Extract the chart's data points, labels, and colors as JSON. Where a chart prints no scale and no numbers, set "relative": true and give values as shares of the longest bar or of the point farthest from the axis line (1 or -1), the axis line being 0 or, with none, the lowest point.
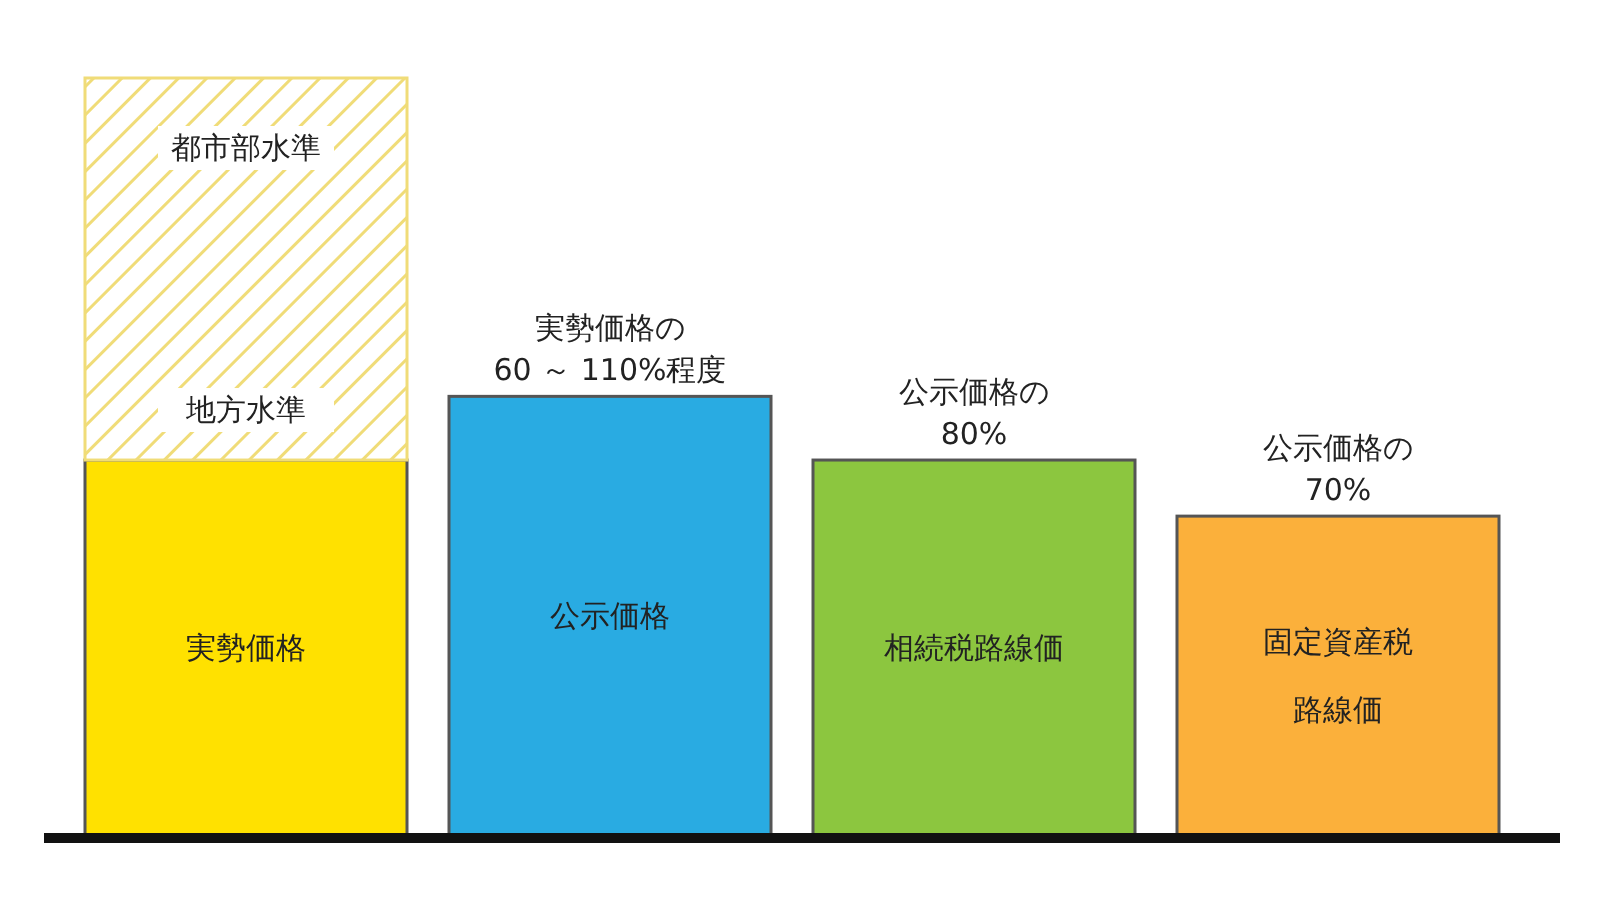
{
  "chart_data": {
    "type": "bar",
    "relative": true,
    "stacked": true,
    "categories": [
      "実勢価格",
      "公示価格",
      "相続税路線価",
      "固定資産税路線価"
    ],
    "series": [
      {
        "colors": [
          "#ffe100",
          "#29abe2",
          "#8cc63f",
          "#fbb03b"
        ],
        "values": [
          0.496,
          0.58,
          0.496,
          0.422
        ]
      },
      {
        "color": "#f0dc78",
        "values": [
          0.504,
          null,
          null,
          null
        ]
      }
    ],
    "annotations": [
      "都市部水準",
      "地方水準",
      {
        "text": "実勢価格の\n60 ～ 110%程度",
        "x": "公示価格",
        "y": 0.58
      },
      {
        "text": "公示価格の\n80%",
        "x": "相続税路線価",
        "y": 0.496
      },
      {
        "text": "公示価格の\n70%",
        "x": "固定資産税路線価",
        "y": 0.422
      }
    ]
  }
}
